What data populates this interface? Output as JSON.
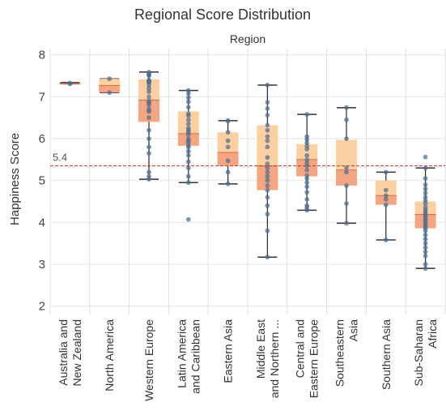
{
  "chart_data": {
    "type": "box",
    "title": "Regional Score Distribution",
    "facet_title": "Region",
    "ylabel": "Happiness Score",
    "xlabel": "",
    "ylim": [
      1.8,
      8.15
    ],
    "yticks": [
      "2",
      "3",
      "4",
      "5",
      "6",
      "7",
      "8"
    ],
    "grid": "y",
    "reference_line": {
      "value": 5.35,
      "label": "5.4",
      "color": "#c0392b"
    },
    "colors": {
      "whisker": "#333333",
      "box_upper": "#fdd0a2",
      "box_lower": "#f4a582",
      "box_lower_core": "#f08e6a",
      "median": "#e06b43",
      "points": "#4f6d8f",
      "grid": "#e6e6e6",
      "separator": "#dddddd"
    },
    "categories": [
      {
        "label_lines": [
          "Australia and",
          "New Zealand"
        ],
        "min": 7.31,
        "q1": 7.31,
        "median": 7.32,
        "q3": 7.33,
        "max": 7.34,
        "points": [
          7.31,
          7.33
        ]
      },
      {
        "label_lines": [
          "North America"
        ],
        "min": 7.1,
        "q1": 7.1,
        "median": 7.27,
        "q3": 7.43,
        "max": 7.43,
        "points": [
          7.43,
          7.1
        ]
      },
      {
        "label_lines": [
          "Western Europe"
        ],
        "min": 5.03,
        "q1": 6.4,
        "median": 6.92,
        "q3": 7.42,
        "max": 7.59,
        "points": [
          7.59,
          7.55,
          7.52,
          7.51,
          7.4,
          7.38,
          7.36,
          7.34,
          7.28,
          7.2,
          7.12,
          7.0,
          6.9,
          6.85,
          6.8,
          6.7,
          6.65,
          6.5,
          6.2,
          6.0,
          5.8,
          5.65,
          5.2,
          5.1,
          5.03
        ]
      },
      {
        "label_lines": [
          "Latin America",
          "and Caribbean"
        ],
        "min": 4.95,
        "q1": 5.83,
        "median": 6.12,
        "q3": 6.65,
        "max": 7.15,
        "points": [
          7.15,
          7.08,
          6.98,
          6.88,
          6.75,
          6.6,
          6.55,
          6.45,
          6.35,
          6.25,
          6.2,
          6.15,
          6.1,
          6.0,
          5.95,
          5.9,
          5.83,
          5.8,
          5.7,
          5.6,
          5.45,
          5.3,
          5.1,
          4.95,
          4.07
        ]
      },
      {
        "label_lines": [
          "Eastern Asia"
        ],
        "min": 4.92,
        "q1": 5.35,
        "median": 5.67,
        "q3": 6.15,
        "max": 6.43,
        "points": [
          6.43,
          6.42,
          6.15,
          5.95,
          5.8,
          5.47,
          5.2,
          4.92
        ]
      },
      {
        "label_lines": [
          "Middle East",
          "and Northern ..."
        ],
        "min": 3.17,
        "q1": 4.77,
        "median": 5.35,
        "q3": 6.32,
        "max": 7.28,
        "points": [
          7.28,
          6.87,
          6.72,
          6.56,
          6.32,
          6.2,
          6.05,
          5.95,
          5.8,
          5.55,
          5.4,
          5.3,
          5.2,
          5.1,
          5.0,
          4.88,
          4.77,
          4.6,
          4.4,
          4.2,
          3.8,
          3.17
        ]
      },
      {
        "label_lines": [
          "Central and",
          "Eastern Europe"
        ],
        "min": 4.29,
        "q1": 5.1,
        "median": 5.5,
        "q3": 5.87,
        "max": 6.58,
        "points": [
          6.58,
          6.05,
          5.98,
          5.9,
          5.82,
          5.75,
          5.6,
          5.5,
          5.42,
          5.35,
          5.25,
          5.12,
          5.05,
          4.95,
          4.85,
          4.72,
          4.55,
          4.4,
          4.35,
          4.29
        ]
      },
      {
        "label_lines": [
          "Southeastern",
          "Asia"
        ],
        "min": 3.98,
        "q1": 4.88,
        "median": 5.25,
        "q3": 5.97,
        "max": 6.74,
        "points": [
          6.74,
          6.45,
          6.0,
          5.3,
          5.2,
          4.88,
          4.45,
          3.98
        ]
      },
      {
        "label_lines": [
          "Southern Asia"
        ],
        "min": 3.58,
        "q1": 4.42,
        "median": 4.64,
        "q3": 5.0,
        "max": 5.2,
        "points": [
          5.2,
          4.77,
          4.64,
          4.55,
          4.42,
          3.58
        ]
      },
      {
        "label_lines": [
          "Sub-Saharan",
          "Africa"
        ],
        "min": 2.9,
        "q1": 3.86,
        "median": 4.19,
        "q3": 4.5,
        "max": 5.3,
        "points": [
          5.56,
          5.3,
          5.05,
          4.9,
          4.8,
          4.7,
          4.6,
          4.52,
          4.45,
          4.36,
          4.3,
          4.25,
          4.2,
          4.15,
          4.1,
          4.05,
          4.0,
          3.95,
          3.9,
          3.86,
          3.8,
          3.7,
          3.6,
          3.5,
          3.4,
          3.3,
          3.2,
          3.0,
          2.9
        ]
      }
    ]
  }
}
